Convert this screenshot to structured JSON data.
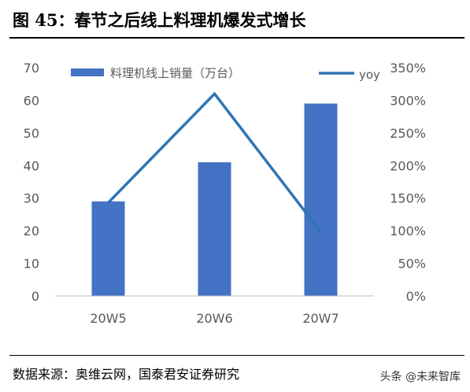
{
  "figure": {
    "title": "图 45：春节之后线上料理机爆发式增长",
    "source": "数据来源：奥维云网，国泰君安证券研究",
    "watermark": "头条 @未来智库"
  },
  "chart_data": {
    "type": "bar",
    "categories": [
      "20W5",
      "20W6",
      "20W7"
    ],
    "series": [
      {
        "name": "料理机线上销量（万台）",
        "type": "bar",
        "axis": "left",
        "values": [
          29,
          41,
          59
        ],
        "color": "#4472C4"
      },
      {
        "name": "yoy",
        "type": "line",
        "axis": "right",
        "values": [
          1.43,
          3.1,
          0.98
        ],
        "color": "#2E75B6"
      }
    ],
    "y_left": {
      "ylim": [
        0,
        70
      ],
      "ticks": [
        "0",
        "10",
        "20",
        "30",
        "40",
        "50",
        "60",
        "70"
      ]
    },
    "y_right": {
      "ylim": [
        0,
        3.5
      ],
      "ticks": [
        "0%",
        "50%",
        "100%",
        "150%",
        "200%",
        "250%",
        "300%",
        "350%"
      ]
    },
    "legend_position": "top",
    "grid": false
  }
}
